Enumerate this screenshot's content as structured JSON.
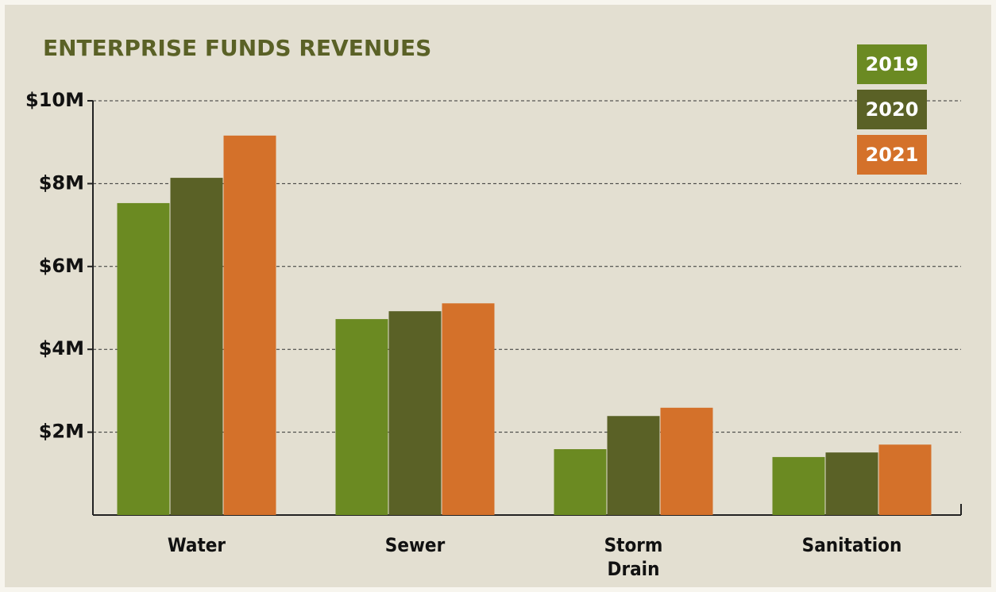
{
  "chart_data": {
    "type": "bar",
    "title": "ENTERPRISE FUNDS REVENUES",
    "categories": [
      "Water",
      "Sewer",
      "Storm Drain",
      "Sanitation"
    ],
    "series": [
      {
        "name": "2019",
        "color": "#6b8a22",
        "values": [
          7.53,
          4.73,
          1.59,
          1.4
        ]
      },
      {
        "name": "2020",
        "color": "#5a6126",
        "values": [
          8.14,
          4.92,
          2.39,
          1.51
        ]
      },
      {
        "name": "2021",
        "color": "#d4712a",
        "values": [
          9.16,
          5.11,
          2.59,
          1.7
        ]
      }
    ],
    "ylim": [
      0,
      10
    ],
    "yticks": [
      {
        "value": 2,
        "label": "$2M"
      },
      {
        "value": 4,
        "label": "$4M"
      },
      {
        "value": 6,
        "label": "$6M"
      },
      {
        "value": 8,
        "label": "$8M"
      },
      {
        "value": 10,
        "label": "$10M"
      }
    ],
    "grid": true,
    "legend": "upper right"
  }
}
